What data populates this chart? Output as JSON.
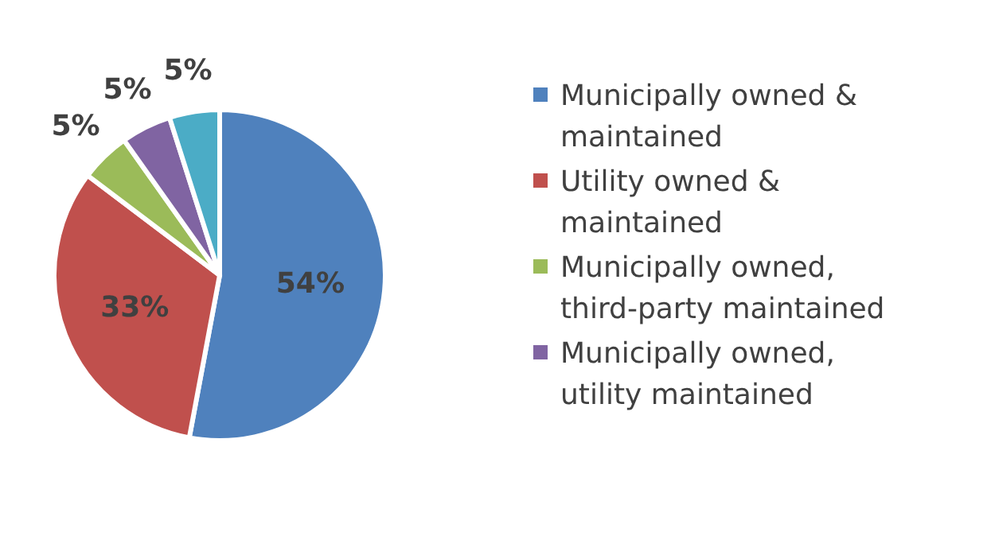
{
  "chart_data": {
    "type": "pie",
    "categories": [
      "Municipally owned & maintained",
      "Utility owned & maintained",
      "Municipally owned, third-party maintained",
      "Municipally owned, utility maintained",
      null
    ],
    "values": [
      54,
      33,
      5,
      5,
      5
    ],
    "colors": [
      "#4f81bd",
      "#c0504d",
      "#9bbb59",
      "#8064a2",
      "#4bacc6"
    ],
    "value_labels": [
      "54%",
      "33%",
      "5%",
      "5%",
      "5%"
    ],
    "legend": "right"
  }
}
